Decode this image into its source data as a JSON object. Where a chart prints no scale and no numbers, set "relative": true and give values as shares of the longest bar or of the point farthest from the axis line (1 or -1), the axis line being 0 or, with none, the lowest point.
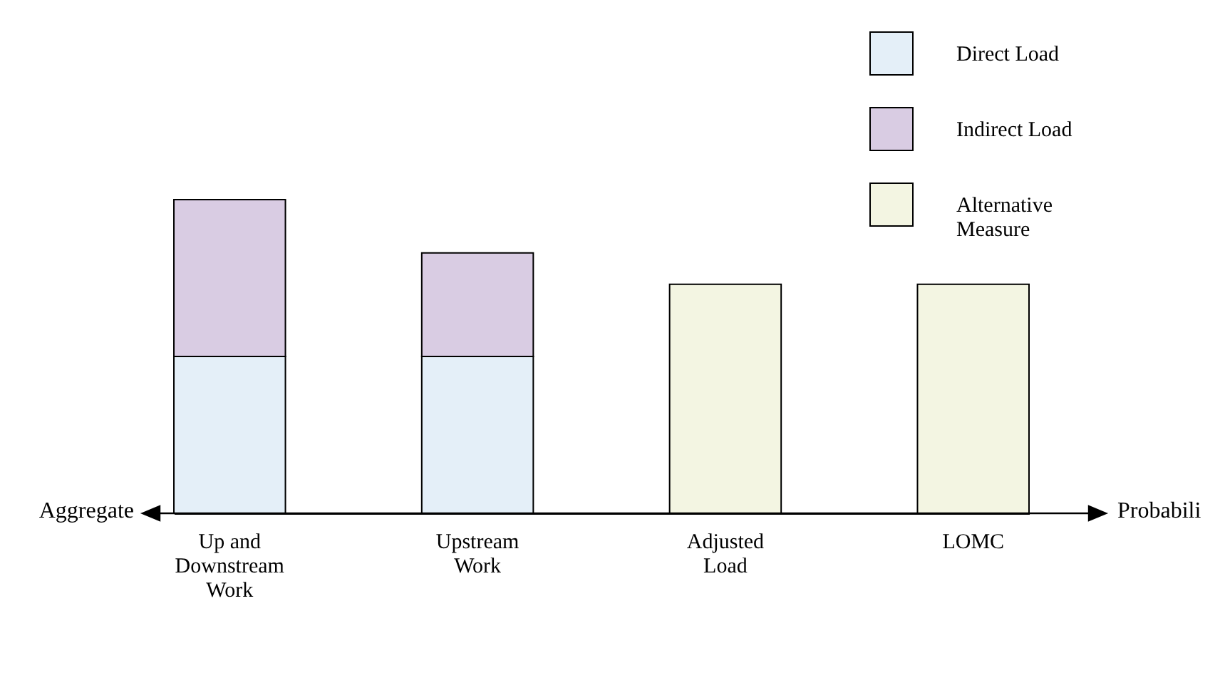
{
  "chart_data": {
    "type": "bar",
    "stacked": true,
    "relative": true,
    "categories": [
      "Up and Downstream Work",
      "Upstream Work",
      "Adjusted Load",
      "LOMC"
    ],
    "series": [
      {
        "name": "Direct Load",
        "color": "#e4eff8",
        "values": [
          0.5,
          0.5,
          null,
          null
        ]
      },
      {
        "name": "Indirect Load",
        "color": "#d9cce3",
        "values": [
          0.5,
          0.33,
          null,
          null
        ]
      },
      {
        "name": "Alternative Measure",
        "color": "#f3f5e2",
        "values": [
          null,
          null,
          0.73,
          0.73
        ]
      }
    ],
    "legend": "top right",
    "annotations": [
      "Aggregate",
      "Probabili"
    ]
  }
}
